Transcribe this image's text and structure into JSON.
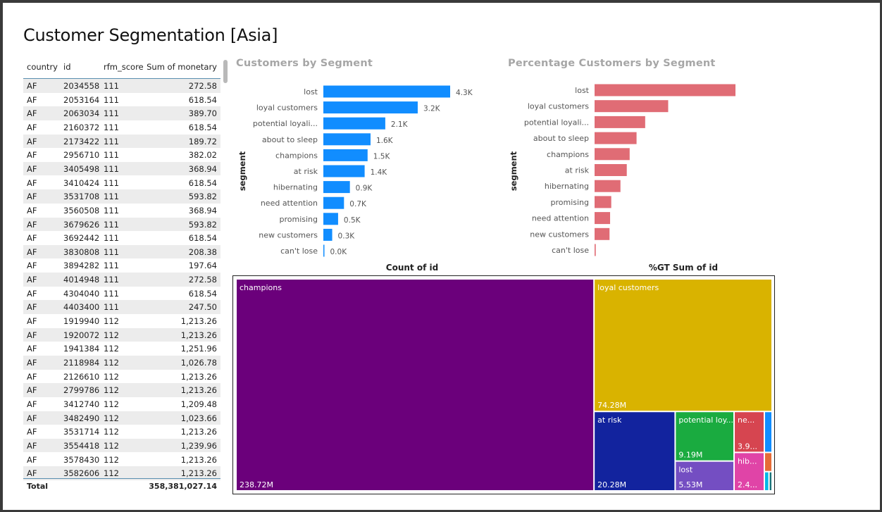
{
  "page": {
    "title": "Customer Segmentation [Asia]"
  },
  "colors": {
    "bar_count": "#118DFF",
    "bar_pct": "#E06C75",
    "treemap": {
      "champions": "#6B007B",
      "loyal customers": "#D9B300",
      "at risk": "#12239E",
      "potential loyalist": "#1AAB40",
      "need attention": "#D64550",
      "lost": "#744EC2",
      "hibernating": "#E044A7",
      "extra_1": "#118DFF",
      "extra_2": "#E66C37",
      "extra_3": "#00B7E6",
      "extra_4": "#197278"
    }
  },
  "table": {
    "headers": {
      "country": "country",
      "id": "id",
      "rfm_score": "rfm_score",
      "sum": "Sum of monetary"
    },
    "rows": [
      [
        "AF",
        "2034558",
        "111",
        "272.58"
      ],
      [
        "AF",
        "2053164",
        "111",
        "618.54"
      ],
      [
        "AF",
        "2063034",
        "111",
        "389.70"
      ],
      [
        "AF",
        "2160372",
        "111",
        "618.54"
      ],
      [
        "AF",
        "2173422",
        "111",
        "189.72"
      ],
      [
        "AF",
        "2956710",
        "111",
        "382.02"
      ],
      [
        "AF",
        "3405498",
        "111",
        "368.94"
      ],
      [
        "AF",
        "3410424",
        "111",
        "618.54"
      ],
      [
        "AF",
        "3531708",
        "111",
        "593.82"
      ],
      [
        "AF",
        "3560508",
        "111",
        "368.94"
      ],
      [
        "AF",
        "3679626",
        "111",
        "593.82"
      ],
      [
        "AF",
        "3692442",
        "111",
        "618.54"
      ],
      [
        "AF",
        "3830808",
        "111",
        "208.38"
      ],
      [
        "AF",
        "3894282",
        "111",
        "197.64"
      ],
      [
        "AF",
        "4014948",
        "111",
        "272.58"
      ],
      [
        "AF",
        "4304040",
        "111",
        "618.54"
      ],
      [
        "AF",
        "4403400",
        "111",
        "247.50"
      ],
      [
        "AF",
        "1919940",
        "112",
        "1,213.26"
      ],
      [
        "AF",
        "1920072",
        "112",
        "1,213.26"
      ],
      [
        "AF",
        "1941384",
        "112",
        "1,251.96"
      ],
      [
        "AF",
        "2118984",
        "112",
        "1,026.78"
      ],
      [
        "AF",
        "2126610",
        "112",
        "1,213.26"
      ],
      [
        "AF",
        "2799786",
        "112",
        "1,213.26"
      ],
      [
        "AF",
        "3412740",
        "112",
        "1,209.48"
      ],
      [
        "AF",
        "3482490",
        "112",
        "1,023.66"
      ],
      [
        "AF",
        "3531714",
        "112",
        "1,213.26"
      ],
      [
        "AF",
        "3554418",
        "112",
        "1,239.96"
      ],
      [
        "AF",
        "3578430",
        "112",
        "1,213.26"
      ],
      [
        "AF",
        "3582606",
        "112",
        "1,213.26"
      ]
    ],
    "total_label": "Total",
    "total_value": "358,381,027.14"
  },
  "chart_data": [
    {
      "type": "bar",
      "orientation": "horizontal",
      "title": "Customers by Segment",
      "xlabel": "Count of id",
      "ylabel": "segment",
      "categories": [
        "lost",
        "loyal customers",
        "potential loyali...",
        "about to sleep",
        "champions",
        "at risk",
        "hibernating",
        "need attention",
        "promising",
        "new customers",
        "can't lose"
      ],
      "values": [
        4.3,
        3.2,
        2.1,
        1.6,
        1.5,
        1.4,
        0.9,
        0.7,
        0.5,
        0.3,
        0.02
      ],
      "data_labels": [
        "4.3K",
        "3.2K",
        "2.1K",
        "1.6K",
        "1.5K",
        "1.4K",
        "0.9K",
        "0.7K",
        "0.5K",
        "0.3K",
        "0.0K"
      ],
      "xlim": [
        0,
        4.3
      ]
    },
    {
      "type": "bar",
      "orientation": "horizontal",
      "title": "Percentage Customers by Segment",
      "xlabel": "%GT Sum of id",
      "ylabel": "segment",
      "categories": [
        "lost",
        "loyal customers",
        "potential loyali...",
        "about to sleep",
        "champions",
        "at risk",
        "hibernating",
        "promising",
        "need attention",
        "new customers",
        "can't lose"
      ],
      "values": [
        24.5,
        12.8,
        8.8,
        7.3,
        6.1,
        5.6,
        4.5,
        2.9,
        2.7,
        2.6,
        0.2
      ],
      "xlim": [
        0,
        24.5
      ]
    },
    {
      "type": "treemap",
      "items": [
        {
          "name": "champions",
          "label": "champions",
          "value_label": "238.72M",
          "value": 238.72
        },
        {
          "name": "loyal customers",
          "label": "loyal customers",
          "value_label": "74.28M",
          "value": 74.28
        },
        {
          "name": "at risk",
          "label": "at risk",
          "value_label": "20.28M",
          "value": 20.28
        },
        {
          "name": "potential loyalist",
          "label": "potential loy...",
          "value_label": "9.19M",
          "value": 9.19
        },
        {
          "name": "need attention",
          "label": "ne...",
          "value_label": "3.9...",
          "value": 3.9
        },
        {
          "name": "lost",
          "label": "lost",
          "value_label": "5.53M",
          "value": 5.53
        },
        {
          "name": "hibernating",
          "label": "hib...",
          "value_label": "2.4...",
          "value": 2.4
        }
      ]
    }
  ]
}
